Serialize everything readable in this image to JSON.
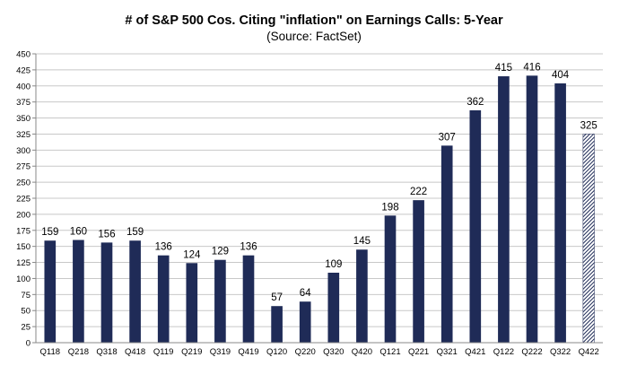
{
  "chart_data": {
    "type": "bar",
    "title": "# of S&P 500 Cos. Citing \"inflation\" on Earnings Calls: 5-Year",
    "subtitle": "(Source: FactSet)",
    "categories": [
      "Q118",
      "Q218",
      "Q318",
      "Q418",
      "Q119",
      "Q219",
      "Q319",
      "Q419",
      "Q120",
      "Q220",
      "Q320",
      "Q420",
      "Q121",
      "Q221",
      "Q321",
      "Q421",
      "Q122",
      "Q222",
      "Q322",
      "Q422"
    ],
    "values": [
      159,
      160,
      156,
      159,
      136,
      124,
      129,
      136,
      57,
      64,
      109,
      145,
      198,
      222,
      307,
      362,
      415,
      416,
      404,
      325
    ],
    "hatched_categories": [
      "Q422"
    ],
    "yticks": [
      0,
      25,
      50,
      75,
      100,
      125,
      150,
      175,
      200,
      225,
      250,
      275,
      300,
      325,
      350,
      375,
      400,
      425,
      450
    ],
    "ylim": [
      0,
      450
    ],
    "grid": true,
    "legend": "none",
    "bar_color": "#1f2b57",
    "grid_color": "#c8c8c8"
  }
}
